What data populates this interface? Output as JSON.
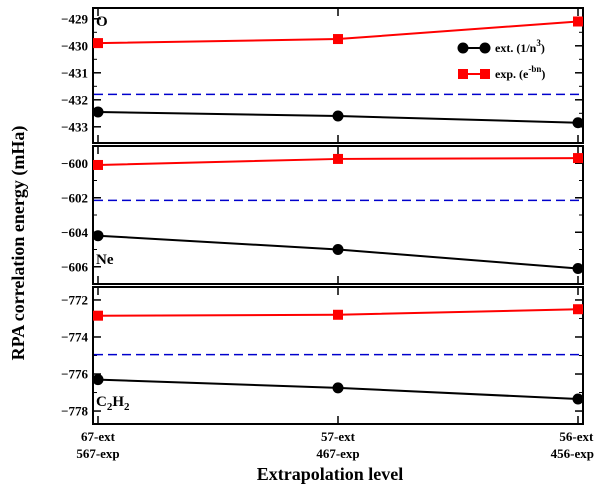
{
  "chart_data": {
    "type": "line",
    "ylabel": "RPA correlation energy (mHa)",
    "xlabel": "Extrapolation level",
    "categories": [
      [
        "67-ext",
        "567-exp"
      ],
      [
        "57-ext",
        "467-exp"
      ],
      [
        "56-ext",
        "456-exp"
      ]
    ],
    "legend": {
      "placement": "top-right",
      "entries": [
        {
          "series": "ext",
          "base": "ext. (1/n",
          "sup": "3",
          "tail": ")"
        },
        {
          "series": "exp",
          "base": "exp. (e",
          "sup": "-bn",
          "tail": ")"
        }
      ]
    },
    "colors": {
      "ext": "#000000",
      "exp": "#ff0000",
      "reference": "#0000cc"
    },
    "panels": [
      {
        "label": [
          {
            "t": "O",
            "sub": false
          }
        ],
        "ylim": [
          -433.6,
          -428.6
        ],
        "yticks": [
          -433,
          -432,
          -431,
          -430,
          -429
        ],
        "reference": -431.8,
        "series": [
          {
            "name": "ext",
            "values": [
              -432.45,
              -432.6,
              -432.85
            ]
          },
          {
            "name": "exp",
            "values": [
              -429.9,
              -429.75,
              -429.1
            ]
          }
        ]
      },
      {
        "label": [
          {
            "t": "Ne",
            "sub": false
          }
        ],
        "ylim": [
          -607.0,
          -599.0
        ],
        "yticks": [
          -606,
          -604,
          -602,
          -600
        ],
        "reference": -602.15,
        "series": [
          {
            "name": "ext",
            "values": [
              -604.2,
              -605.0,
              -606.1
            ]
          },
          {
            "name": "exp",
            "values": [
              -600.1,
              -599.75,
              -599.7
            ]
          }
        ]
      },
      {
        "label": [
          {
            "t": "C",
            "sub": false
          },
          {
            "t": "2",
            "sub": true
          },
          {
            "t": "H",
            "sub": false
          },
          {
            "t": "2",
            "sub": true
          }
        ],
        "ylim": [
          -778.7,
          -771.3
        ],
        "yticks": [
          -778,
          -776,
          -774,
          -772
        ],
        "reference": -774.95,
        "series": [
          {
            "name": "ext",
            "values": [
              -776.3,
              -776.75,
              -777.35
            ]
          },
          {
            "name": "exp",
            "values": [
              -772.85,
              -772.8,
              -772.5
            ]
          }
        ]
      }
    ]
  }
}
